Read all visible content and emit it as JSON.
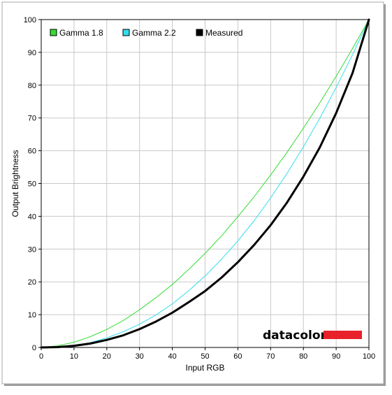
{
  "chart_data": {
    "type": "line",
    "xlabel": "Input RGB",
    "ylabel": "Output Brightness",
    "xlim": [
      0,
      100
    ],
    "ylim": [
      0,
      100
    ],
    "xticks": [
      0,
      10,
      20,
      30,
      40,
      50,
      60,
      70,
      80,
      90,
      100
    ],
    "yticks": [
      0,
      10,
      20,
      30,
      40,
      50,
      60,
      70,
      80,
      90,
      100
    ],
    "grid": true,
    "legend_position": "top-left",
    "x": [
      0,
      5,
      10,
      15,
      20,
      25,
      30,
      35,
      40,
      45,
      50,
      55,
      60,
      65,
      70,
      75,
      80,
      85,
      90,
      95,
      100
    ],
    "series": [
      {
        "name": "Gamma 1.8",
        "color": "#33dd33",
        "width": 1,
        "values": [
          0,
          0.5,
          1.6,
          3.3,
          5.5,
          8.2,
          11.5,
          15.2,
          19.2,
          23.8,
          28.7,
          34.0,
          39.9,
          46.0,
          52.6,
          59.5,
          66.9,
          74.6,
          82.7,
          91.2,
          100
        ]
      },
      {
        "name": "Gamma 2.2",
        "color": "#33ddee",
        "width": 1,
        "values": [
          0,
          0.1,
          0.6,
          1.5,
          2.9,
          4.8,
          7.1,
          9.9,
          13.3,
          17.3,
          21.8,
          26.9,
          32.5,
          38.7,
          45.6,
          53.1,
          61.2,
          69.9,
          79.3,
          89.3,
          100
        ]
      },
      {
        "name": "Measured",
        "color": "#000000",
        "width": 3,
        "values": [
          0,
          0.1,
          0.5,
          1.2,
          2.3,
          3.7,
          5.6,
          7.9,
          10.6,
          13.8,
          17.2,
          21.3,
          26.0,
          31.3,
          37.3,
          44.2,
          52.1,
          61.0,
          71.5,
          83.7,
          100
        ]
      }
    ]
  },
  "branding": {
    "logo_text": "datacolor",
    "logo_bar_color": "#e8202a"
  },
  "colors": {
    "grid": "#c8c8c8",
    "frame_border": "#aaaaaa",
    "plot_border": "#000000"
  }
}
